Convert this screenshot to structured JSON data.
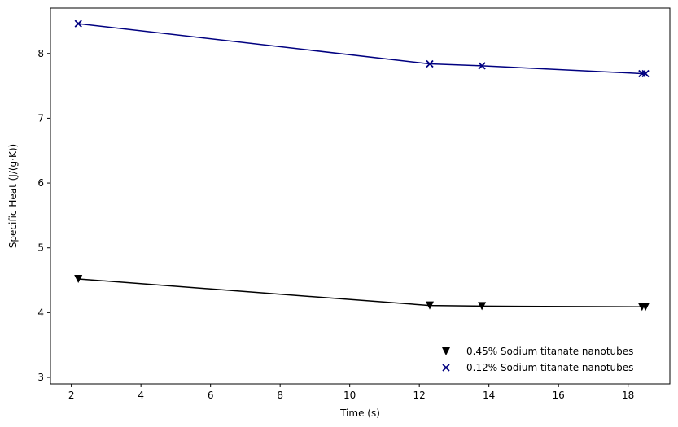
{
  "chart_data": {
    "type": "line",
    "xlabel": "Time (s)",
    "ylabel": "Specific Heat (J/(g·K))",
    "xlim": [
      1.4,
      19.2
    ],
    "ylim": [
      2.9,
      8.7
    ],
    "xticks": [
      2,
      4,
      6,
      8,
      10,
      12,
      14,
      16,
      18
    ],
    "yticks": [
      3,
      4,
      5,
      6,
      7,
      8
    ],
    "grid": false,
    "legend_position": "lower-right",
    "series": [
      {
        "name": "0.45% Sodium titanate nanotubes",
        "marker": "triangle-down",
        "color": "#000000",
        "x": [
          2.2,
          12.3,
          13.8,
          18.4,
          18.5
        ],
        "y": [
          4.52,
          4.11,
          4.1,
          4.09,
          4.09
        ]
      },
      {
        "name": "0.12% Sodium titanate nanotubes",
        "marker": "x",
        "color": "#000080",
        "x": [
          2.2,
          12.3,
          13.8,
          18.4,
          18.5
        ],
        "y": [
          8.46,
          7.84,
          7.81,
          7.69,
          7.69
        ]
      }
    ]
  }
}
